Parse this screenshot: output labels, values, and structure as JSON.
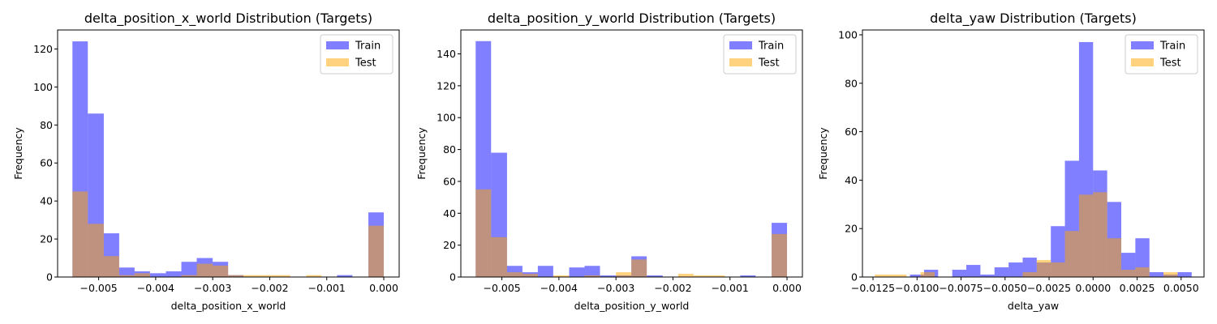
{
  "chart_data": [
    {
      "type": "histogram",
      "title": "delta_position_x_world Distribution (Targets)",
      "xlabel": "delta_position_x_world",
      "ylabel": "Frequency",
      "xlim": [
        -0.00572,
        0.00027
      ],
      "ylim": [
        0,
        130
      ],
      "xticks": [
        -0.005,
        -0.004,
        -0.003,
        -0.002,
        -0.001,
        0.0
      ],
      "xtick_labels": [
        "−0.005",
        "−0.004",
        "−0.003",
        "−0.002",
        "−0.001",
        "0.000"
      ],
      "yticks": [
        0,
        20,
        40,
        60,
        80,
        100,
        120
      ],
      "legend_position": "top-right",
      "series": [
        {
          "name": "Train",
          "color": "#0000ff",
          "alpha": 0.5,
          "bins": [
            {
              "x0": -0.00546,
              "x1": -0.00519,
              "count": 124
            },
            {
              "x0": -0.00519,
              "x1": -0.00491,
              "count": 86
            },
            {
              "x0": -0.00491,
              "x1": -0.00464,
              "count": 23
            },
            {
              "x0": -0.00464,
              "x1": -0.00437,
              "count": 5
            },
            {
              "x0": -0.00437,
              "x1": -0.0041,
              "count": 3
            },
            {
              "x0": -0.0041,
              "x1": -0.00382,
              "count": 2
            },
            {
              "x0": -0.00382,
              "x1": -0.00355,
              "count": 3
            },
            {
              "x0": -0.00355,
              "x1": -0.00328,
              "count": 8
            },
            {
              "x0": -0.00328,
              "x1": -0.003,
              "count": 10
            },
            {
              "x0": -0.003,
              "x1": -0.00273,
              "count": 8
            },
            {
              "x0": -0.00273,
              "x1": -0.00246,
              "count": 1
            },
            {
              "x0": -0.00082,
              "x1": -0.00055,
              "count": 1
            },
            {
              "x0": -0.00027,
              "x1": 0.0,
              "count": 34
            }
          ]
        },
        {
          "name": "Test",
          "color": "#ffa500",
          "alpha": 0.5,
          "bins": [
            {
              "x0": -0.00546,
              "x1": -0.00519,
              "count": 45
            },
            {
              "x0": -0.00519,
              "x1": -0.00491,
              "count": 28
            },
            {
              "x0": -0.00491,
              "x1": -0.00464,
              "count": 11
            },
            {
              "x0": -0.00464,
              "x1": -0.00437,
              "count": 1
            },
            {
              "x0": -0.00437,
              "x1": -0.0041,
              "count": 2
            },
            {
              "x0": -0.00355,
              "x1": -0.00328,
              "count": 1
            },
            {
              "x0": -0.00328,
              "x1": -0.003,
              "count": 7
            },
            {
              "x0": -0.003,
              "x1": -0.00273,
              "count": 6
            },
            {
              "x0": -0.00273,
              "x1": -0.00246,
              "count": 1
            },
            {
              "x0": -0.00246,
              "x1": -0.00218,
              "count": 1
            },
            {
              "x0": -0.00218,
              "x1": -0.00191,
              "count": 1
            },
            {
              "x0": -0.00191,
              "x1": -0.00164,
              "count": 1
            },
            {
              "x0": -0.00136,
              "x1": -0.00109,
              "count": 1
            },
            {
              "x0": -0.00027,
              "x1": 0.0,
              "count": 27
            }
          ]
        }
      ]
    },
    {
      "type": "histogram",
      "title": "delta_position_y_world Distribution (Targets)",
      "xlabel": "delta_position_y_world",
      "ylabel": "Frequency",
      "xlim": [
        -0.00572,
        0.00027
      ],
      "ylim": [
        0,
        155
      ],
      "xticks": [
        -0.005,
        -0.004,
        -0.003,
        -0.002,
        -0.001,
        0.0
      ],
      "xtick_labels": [
        "−0.005",
        "−0.004",
        "−0.003",
        "−0.002",
        "−0.001",
        "0.000"
      ],
      "yticks": [
        0,
        20,
        40,
        60,
        80,
        100,
        120,
        140
      ],
      "legend_position": "top-right",
      "series": [
        {
          "name": "Train",
          "color": "#0000ff",
          "alpha": 0.5,
          "bins": [
            {
              "x0": -0.00546,
              "x1": -0.00519,
              "count": 148
            },
            {
              "x0": -0.00519,
              "x1": -0.00491,
              "count": 78
            },
            {
              "x0": -0.00491,
              "x1": -0.00464,
              "count": 7
            },
            {
              "x0": -0.00464,
              "x1": -0.00437,
              "count": 3
            },
            {
              "x0": -0.00437,
              "x1": -0.0041,
              "count": 7
            },
            {
              "x0": -0.00382,
              "x1": -0.00355,
              "count": 6
            },
            {
              "x0": -0.00355,
              "x1": -0.00328,
              "count": 7
            },
            {
              "x0": -0.00328,
              "x1": -0.003,
              "count": 1
            },
            {
              "x0": -0.003,
              "x1": -0.00273,
              "count": 1
            },
            {
              "x0": -0.00273,
              "x1": -0.00246,
              "count": 13
            },
            {
              "x0": -0.00246,
              "x1": -0.00218,
              "count": 1
            },
            {
              "x0": -0.00082,
              "x1": -0.00055,
              "count": 1
            },
            {
              "x0": -0.00027,
              "x1": 0.0,
              "count": 34
            }
          ]
        },
        {
          "name": "Test",
          "color": "#ffa500",
          "alpha": 0.5,
          "bins": [
            {
              "x0": -0.00546,
              "x1": -0.00519,
              "count": 55
            },
            {
              "x0": -0.00519,
              "x1": -0.00491,
              "count": 25
            },
            {
              "x0": -0.00491,
              "x1": -0.00464,
              "count": 3
            },
            {
              "x0": -0.00464,
              "x1": -0.00437,
              "count": 2
            },
            {
              "x0": -0.0041,
              "x1": -0.00382,
              "count": 1
            },
            {
              "x0": -0.00355,
              "x1": -0.00328,
              "count": 1
            },
            {
              "x0": -0.003,
              "x1": -0.00273,
              "count": 3
            },
            {
              "x0": -0.00273,
              "x1": -0.00246,
              "count": 11
            },
            {
              "x0": -0.00191,
              "x1": -0.00164,
              "count": 2
            },
            {
              "x0": -0.00164,
              "x1": -0.00136,
              "count": 1
            },
            {
              "x0": -0.00136,
              "x1": -0.00109,
              "count": 1
            },
            {
              "x0": -0.00027,
              "x1": 0.0,
              "count": 27
            }
          ]
        }
      ]
    },
    {
      "type": "histogram",
      "title": "delta_yaw Distribution (Targets)",
      "xlabel": "delta_yaw",
      "ylabel": "Frequency",
      "xlim": [
        -0.0131,
        0.0063
      ],
      "ylim": [
        0,
        102
      ],
      "xticks": [
        -0.0125,
        -0.01,
        -0.0075,
        -0.005,
        -0.0025,
        0.0,
        0.0025,
        0.005
      ],
      "xtick_labels": [
        "−0.0125",
        "−0.0100",
        "−0.0075",
        "−0.0050",
        "−0.0025",
        "0.0000",
        "0.0025",
        "0.0050"
      ],
      "yticks": [
        0,
        20,
        40,
        60,
        80,
        100
      ],
      "legend_position": "top-right",
      "series": [
        {
          "name": "Train",
          "color": "#0000ff",
          "alpha": 0.5,
          "bins": [
            {
              "x0": -0.0104,
              "x1": -0.0096,
              "count": 1
            },
            {
              "x0": -0.0096,
              "x1": -0.0088,
              "count": 3
            },
            {
              "x0": -0.008,
              "x1": -0.0072,
              "count": 3
            },
            {
              "x0": -0.0072,
              "x1": -0.0064,
              "count": 5
            },
            {
              "x0": -0.0064,
              "x1": -0.0056,
              "count": 1
            },
            {
              "x0": -0.0056,
              "x1": -0.0048,
              "count": 4
            },
            {
              "x0": -0.0048,
              "x1": -0.004,
              "count": 6
            },
            {
              "x0": -0.004,
              "x1": -0.0032,
              "count": 8
            },
            {
              "x0": -0.0032,
              "x1": -0.0024,
              "count": 6
            },
            {
              "x0": -0.0024,
              "x1": -0.0016,
              "count": 21
            },
            {
              "x0": -0.0016,
              "x1": -0.0008,
              "count": 48
            },
            {
              "x0": -0.0008,
              "x1": 0.0,
              "count": 97
            },
            {
              "x0": 0.0,
              "x1": 0.0008,
              "count": 44
            },
            {
              "x0": 0.0008,
              "x1": 0.0016,
              "count": 31
            },
            {
              "x0": 0.0016,
              "x1": 0.0024,
              "count": 10
            },
            {
              "x0": 0.0024,
              "x1": 0.0032,
              "count": 16
            },
            {
              "x0": 0.0032,
              "x1": 0.004,
              "count": 2
            },
            {
              "x0": 0.004,
              "x1": 0.0048,
              "count": 1
            },
            {
              "x0": 0.0048,
              "x1": 0.0056,
              "count": 2
            }
          ]
        },
        {
          "name": "Test",
          "color": "#ffa500",
          "alpha": 0.5,
          "bins": [
            {
              "x0": -0.0124,
              "x1": -0.0106,
              "count": 1
            },
            {
              "x0": -0.0098,
              "x1": -0.009,
              "count": 2
            },
            {
              "x0": -0.004,
              "x1": -0.0032,
              "count": 2
            },
            {
              "x0": -0.0032,
              "x1": -0.0024,
              "count": 7
            },
            {
              "x0": -0.0024,
              "x1": -0.0016,
              "count": 6
            },
            {
              "x0": -0.0016,
              "x1": -0.0008,
              "count": 19
            },
            {
              "x0": -0.0008,
              "x1": 0.0,
              "count": 34
            },
            {
              "x0": 0.0,
              "x1": 0.0008,
              "count": 35
            },
            {
              "x0": 0.0008,
              "x1": 0.0016,
              "count": 16
            },
            {
              "x0": 0.0016,
              "x1": 0.0024,
              "count": 3
            },
            {
              "x0": 0.0024,
              "x1": 0.0032,
              "count": 4
            },
            {
              "x0": 0.004,
              "x1": 0.0048,
              "count": 2
            }
          ]
        }
      ]
    }
  ]
}
